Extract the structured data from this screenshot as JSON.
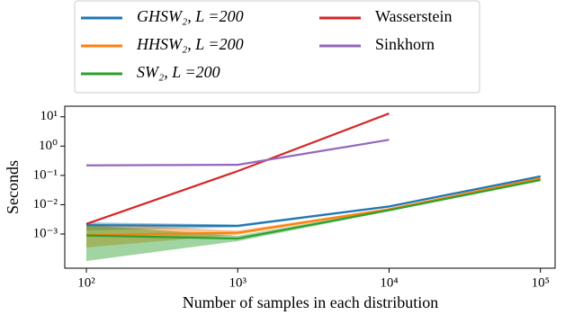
{
  "chart_data": {
    "type": "line",
    "log_x": true,
    "log_y": true,
    "xlabel": "Number of samples in each distribution",
    "ylabel": "Seconds",
    "x": [
      100,
      1000,
      10000,
      100000
    ],
    "xlim": [
      72,
      125000
    ],
    "ylim": [
      6.8e-05,
      23
    ],
    "xticks": [
      {
        "value": 100,
        "label": "10²"
      },
      {
        "value": 1000,
        "label": "10³"
      },
      {
        "value": 10000,
        "label": "10⁴"
      },
      {
        "value": 100000,
        "label": "10⁵"
      }
    ],
    "yticks": [
      {
        "value": 0.001,
        "label": "10⁻³"
      },
      {
        "value": 0.01,
        "label": "10⁻²"
      },
      {
        "value": 0.1,
        "label": "10⁻¹"
      },
      {
        "value": 1,
        "label": "10⁰"
      },
      {
        "value": 10,
        "label": "10¹"
      }
    ],
    "legend": "top-left",
    "series": [
      {
        "name": "GHSW₂, L =200",
        "color": "#1f77b4",
        "values": [
          0.002,
          0.0019,
          0.0087,
          0.093
        ],
        "lower": [
          0.0013,
          0.0017,
          0.008,
          0.087
        ],
        "upper": [
          0.0025,
          0.0021,
          0.0095,
          0.1
        ]
      },
      {
        "name": "HHSW₂, L =200",
        "color": "#ff7f0e",
        "values": [
          0.00093,
          0.0011,
          0.007,
          0.08
        ],
        "lower": [
          0.00035,
          0.00095,
          0.0065,
          0.074
        ],
        "upper": [
          0.0023,
          0.0013,
          0.0076,
          0.087
        ]
      },
      {
        "name": "SW₂, L =200",
        "color": "#2ca02c",
        "values": [
          0.00089,
          0.0007,
          0.0065,
          0.07
        ],
        "lower": [
          0.00012,
          0.00057,
          0.006,
          0.064
        ],
        "upper": [
          0.002,
          0.00087,
          0.007,
          0.077
        ]
      },
      {
        "name": "Wasserstein",
        "color": "#d62728",
        "values": [
          0.0022,
          0.14,
          13,
          null
        ]
      },
      {
        "name": "Sinkhorn",
        "color": "#9467bd",
        "values": [
          0.22,
          0.23,
          1.64,
          null
        ]
      }
    ]
  }
}
